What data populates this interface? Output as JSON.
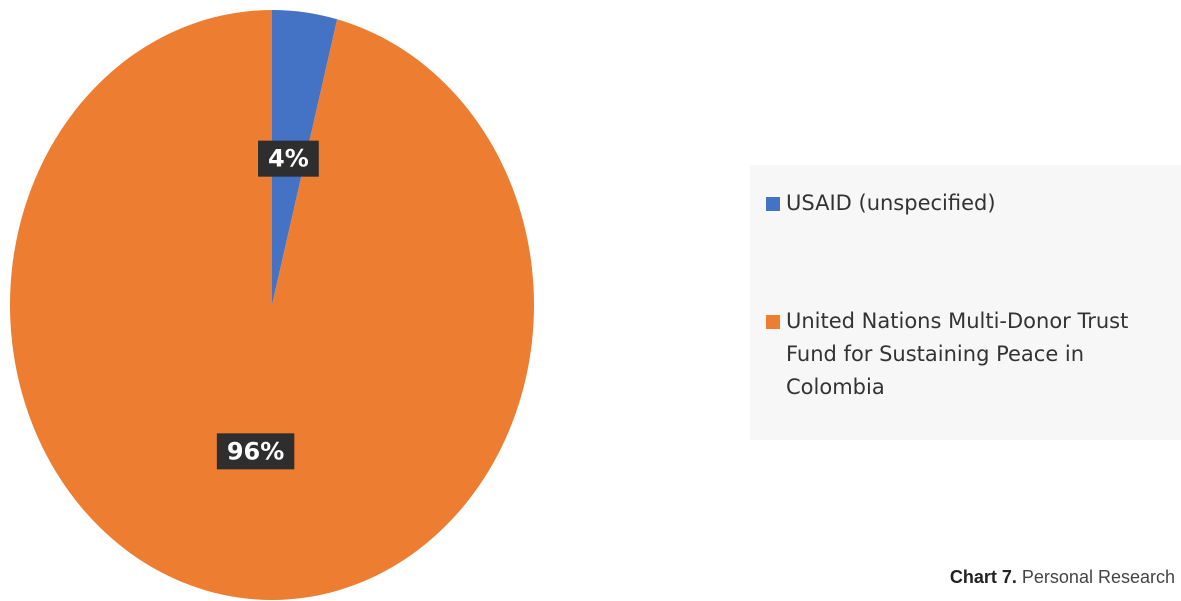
{
  "chart_data": {
    "type": "pie",
    "categories": [
      "USAID (unspecified)",
      "United Nations Multi-Donor Trust Fund for Sustaining Peace in Colombia"
    ],
    "values": [
      4,
      96
    ],
    "value_labels": [
      "4%",
      "96%"
    ],
    "colors": [
      "#4472c4",
      "#ed7d31"
    ],
    "caption": {
      "label": "Chart 7.",
      "text": "Personal Research"
    }
  }
}
